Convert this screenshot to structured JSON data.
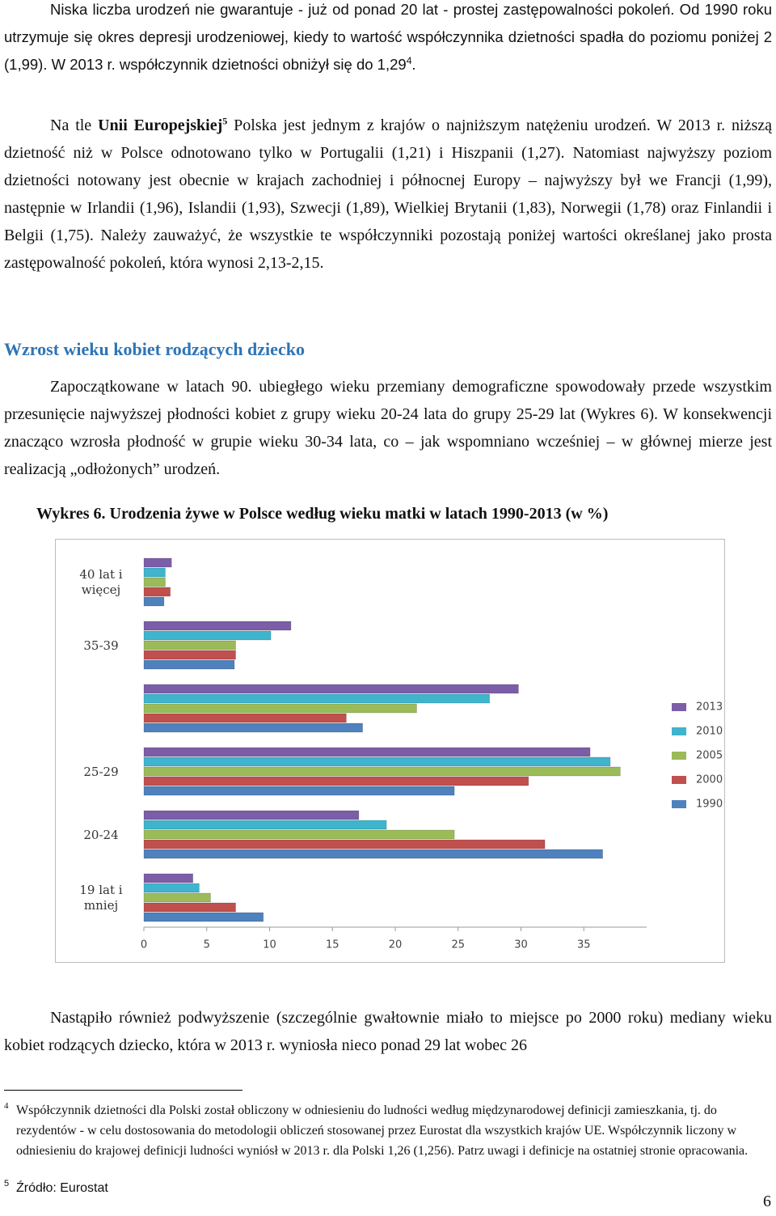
{
  "body": {
    "p1": [
      "Niska liczba urodzeń nie gwarantuje - już od ponad 20 lat - prostej zastępowalności pokoleń. Od 1990 roku utrzymuje się okres depresji urodzeniowej, kiedy to wartość współczynnika dzietności spadła do poziomu poniżej 2 (1,99). W 2013 r. współczynnik dzietności obniżył się do 1,29",
      "4",
      "."
    ],
    "p2": [
      "Na tle ",
      "Unii Europejskiej",
      "5",
      " Polska jest jednym z krajów o najniższym natężeniu urodzeń. W 2013 r. niższą dzietność niż w Polsce odnotowano tylko w Portugalii (1,21) i Hiszpanii (1,27). Natomiast najwyższy poziom dzietności notowany jest obecnie w krajach zachodniej i północnej Europy – najwyższy był we Francji (1,99), następnie w Irlandii (1,96), Islandii (1,93), Szwecji (1,89), Wielkiej Brytanii (1,83), Norwegii (1,78) oraz Finlandii i Belgii (1,75). Należy zauważyć, że wszystkie te współczynniki pozostają poniżej wartości określanej jako prosta zastępowalność pokoleń, która wynosi 2,13-2,15."
    ],
    "heading": "Wzrost wieku kobiet rodzących dziecko",
    "p3": "Zapoczątkowane w latach 90. ubiegłego wieku przemiany demograficzne spowodowały przede wszystkim przesunięcie najwyższej płodności kobiet z grupy wieku 20-24 lata do grupy 25-29 lat (Wykres 6). W konsekwencji znacząco wzrosła płodność w grupie wieku 30-34 lata, co – jak wspomniano wcześniej – w głównej mierze jest realizacją „odłożonych” urodzeń.",
    "chart_caption": "Wykres 6. Urodzenia żywe w Polsce według wieku matki w latach 1990-2013 (w %)",
    "p4": "Nastąpiło również podwyższenie (szczególnie gwałtownie miało to miejsce po 2000 roku) mediany wieku kobiet rodzących dziecko, która w 2013 r. wyniosła nieco ponad 29 lat wobec 26"
  },
  "footnotes": [
    {
      "ref": "4",
      "text": "Współczynnik dzietności dla Polski został obliczony w odniesieniu do ludności według międzynarodowej definicji zamieszkania, tj. do rezydentów - w celu dostosowania do metodologii obliczeń stosowanej przez Eurostat dla wszystkich krajów UE. Współczynnik liczony w odniesieniu do krajowej definicji ludności wyniósł w 2013 r. dla Polski 1,26 (1,256). Patrz uwagi i definicje na ostatniej stronie opracowania."
    },
    {
      "ref": "5",
      "text": "Źródło: Eurostat"
    }
  ],
  "page_number": "6",
  "chart_data": {
    "type": "bar",
    "orientation": "horizontal",
    "categories": [
      "40 lat i więcej",
      "35-39",
      null,
      "25-29",
      "20-24",
      "19 lat i mniej"
    ],
    "series": [
      {
        "name": "2013",
        "color": "#7b5ea7",
        "values": [
          2.2,
          11.7,
          29.8,
          35.5,
          17.1,
          3.9
        ]
      },
      {
        "name": "2010",
        "color": "#3fb4cd",
        "values": [
          1.7,
          10.1,
          27.5,
          37.1,
          19.3,
          4.4
        ]
      },
      {
        "name": "2005",
        "color": "#9bbb59",
        "values": [
          1.7,
          7.3,
          21.7,
          37.9,
          24.7,
          5.3
        ]
      },
      {
        "name": "2000",
        "color": "#c0504d",
        "values": [
          2.1,
          7.3,
          16.1,
          30.6,
          31.9,
          7.3
        ]
      },
      {
        "name": "1990",
        "color": "#4f81bd",
        "values": [
          1.6,
          7.2,
          17.4,
          24.7,
          36.5,
          9.5
        ]
      }
    ],
    "xlim": [
      0,
      40
    ],
    "xticks": [
      0,
      5,
      10,
      15,
      20,
      25,
      30,
      35
    ],
    "grid": false,
    "legend": "right"
  }
}
